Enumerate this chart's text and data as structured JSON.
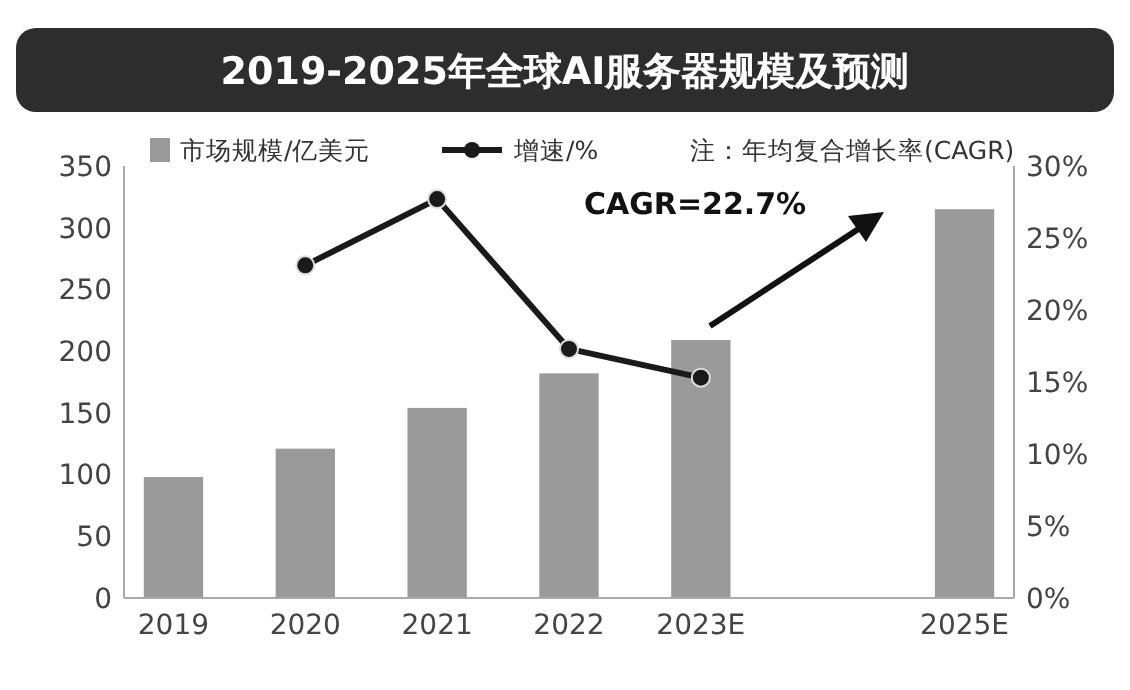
{
  "chart_data": {
    "type": "bar",
    "title": "2019-2025年全球AI服务器规模及预测",
    "categories": [
      "2019",
      "2020",
      "2021",
      "2022",
      "2023E",
      null,
      "2025E"
    ],
    "series": [
      {
        "name": "市场规模/亿美元",
        "color": "#9a9a9a",
        "values": [
          98,
          121,
          154,
          182,
          209,
          null,
          315
        ]
      },
      {
        "name": "增速/%",
        "type": "line",
        "axis": "y2",
        "color": "#1a1a1a",
        "marker": "circle",
        "values": [
          null,
          23.1,
          27.7,
          17.3,
          15.3,
          null,
          null
        ]
      }
    ],
    "ylim": [
      0,
      350
    ],
    "yticks": [
      0,
      50,
      100,
      150,
      200,
      250,
      300,
      350
    ],
    "y2lim": [
      0,
      30
    ],
    "y2ticks": [
      {
        "value": 0,
        "label": "0%"
      },
      {
        "value": 5,
        "label": "5%"
      },
      {
        "value": 10,
        "label": "10%"
      },
      {
        "value": 15,
        "label": "15%"
      },
      {
        "value": 20,
        "label": "20%"
      },
      {
        "value": 25,
        "label": "25%"
      },
      {
        "value": 30,
        "label": "30%"
      }
    ],
    "legend": "top left",
    "grid": false,
    "annotations": [
      "注：年均复合增长率(CAGR)",
      "CAGR=22.7%"
    ]
  }
}
